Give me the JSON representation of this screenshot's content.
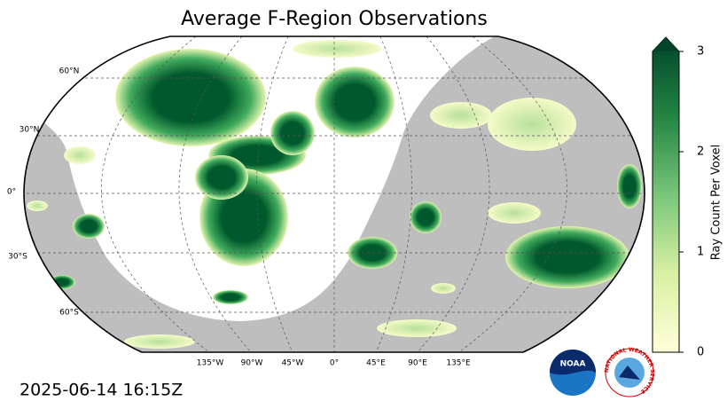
{
  "title": "Average F-Region Observations",
  "timestamp": "2025-06-14 16:15Z",
  "colorbar": {
    "label": "Ray Count Per Voxel",
    "range": [
      0,
      3
    ],
    "ticks": [
      0,
      1,
      2,
      3
    ]
  },
  "lat_labels": [
    "60°N",
    "30°N",
    "0°",
    "30°S",
    "60°S"
  ],
  "lon_labels": [
    "135°W",
    "90°W",
    "45°W",
    "0°",
    "45°E",
    "90°E",
    "135°E"
  ],
  "logos": {
    "noaa": "NOAA",
    "nws": "NATIONAL WEATHER SERVICE"
  }
}
